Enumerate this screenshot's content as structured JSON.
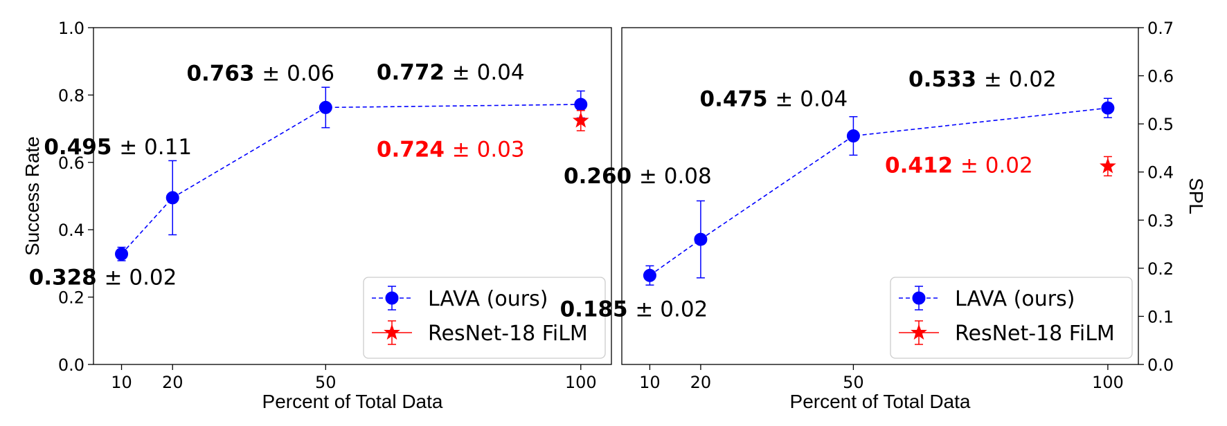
{
  "chart_data": [
    {
      "type": "line",
      "xlabel": "Percent of Total Data",
      "ylabel": "Success Rate",
      "y_axis_side": "left",
      "xlim": [
        4.5,
        106
      ],
      "ylim": [
        0,
        1.0
      ],
      "xticks": [
        10,
        20,
        50,
        100
      ],
      "yticks": [
        "0.0",
        "0.2",
        "0.4",
        "0.6",
        "0.8",
        "1.0"
      ],
      "series": [
        {
          "name": "LAVA (ours)",
          "color": "#0000ff",
          "marker": "circle",
          "line": "dashed",
          "points": [
            {
              "x": 10,
              "y": 0.328,
              "err": 0.02,
              "label_value": "0.328",
              "label_err": "± 0.02",
              "label_pos": "below-left"
            },
            {
              "x": 20,
              "y": 0.495,
              "err": 0.11,
              "label_value": "0.495",
              "label_err": "± 0.11",
              "label_pos": "above-left"
            },
            {
              "x": 50,
              "y": 0.763,
              "err": 0.06,
              "label_value": "0.763",
              "label_err": "± 0.06",
              "label_pos": "above"
            },
            {
              "x": 100,
              "y": 0.772,
              "err": 0.04,
              "label_value": "0.772",
              "label_err": "± 0.04",
              "label_pos": "above-left"
            }
          ]
        },
        {
          "name": "ResNet-18 FiLM",
          "color": "#ff0000",
          "marker": "star",
          "line": "solid",
          "points": [
            {
              "x": 100,
              "y": 0.724,
              "err": 0.03,
              "label_value": "0.724",
              "label_err": "± 0.03",
              "label_pos": "below-left"
            }
          ]
        }
      ],
      "legend": "lower-right"
    },
    {
      "type": "line",
      "xlabel": "Percent of Total Data",
      "ylabel": "SPL",
      "y_axis_side": "right",
      "xlim": [
        4.5,
        106
      ],
      "ylim": [
        0,
        0.7
      ],
      "xticks": [
        10,
        20,
        50,
        100
      ],
      "yticks": [
        "0.0",
        "0.1",
        "0.2",
        "0.3",
        "0.4",
        "0.5",
        "0.6",
        "0.7"
      ],
      "series": [
        {
          "name": "LAVA (ours)",
          "color": "#0000ff",
          "marker": "circle",
          "line": "dashed",
          "points": [
            {
              "x": 10,
              "y": 0.185,
              "err": 0.02,
              "label_value": "0.185",
              "label_err": "± 0.02",
              "label_pos": "below-right"
            },
            {
              "x": 20,
              "y": 0.26,
              "err": 0.08,
              "label_value": "0.260",
              "label_err": "± 0.08",
              "label_pos": "above-right"
            },
            {
              "x": 50,
              "y": 0.475,
              "err": 0.04,
              "label_value": "0.475",
              "label_err": "± 0.04",
              "label_pos": "above"
            },
            {
              "x": 100,
              "y": 0.533,
              "err": 0.02,
              "label_value": "0.533",
              "label_err": "± 0.02",
              "label_pos": "above-left"
            }
          ]
        },
        {
          "name": "ResNet-18 FiLM",
          "color": "#ff0000",
          "marker": "star",
          "line": "solid",
          "points": [
            {
              "x": 100,
              "y": 0.412,
              "err": 0.02,
              "label_value": "0.412",
              "label_err": "± 0.02",
              "label_pos": "left"
            }
          ]
        }
      ],
      "legend": "lower-right"
    }
  ]
}
